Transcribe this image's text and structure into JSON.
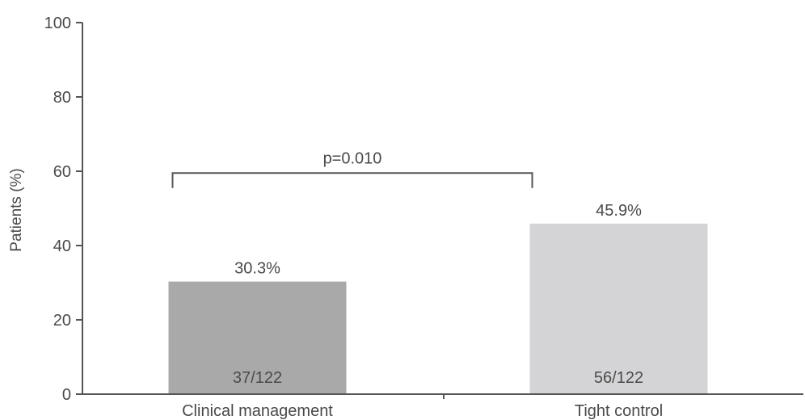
{
  "chart_data": {
    "type": "bar",
    "ylabel": "Patients (%)",
    "ylim": [
      0,
      100
    ],
    "yticks": [
      0,
      20,
      40,
      60,
      80,
      100
    ],
    "grid": false,
    "categories": [
      "Clinical management",
      "Tight control"
    ],
    "values": [
      30.3,
      45.9
    ],
    "data_labels": [
      "30.3%",
      "45.9%"
    ],
    "count_labels": [
      "37/122",
      "56/122"
    ],
    "colors": [
      "#a9a9a9",
      "#d4d4d6"
    ],
    "annotation": {
      "text": "p=0.010",
      "between": [
        0,
        1
      ]
    }
  }
}
